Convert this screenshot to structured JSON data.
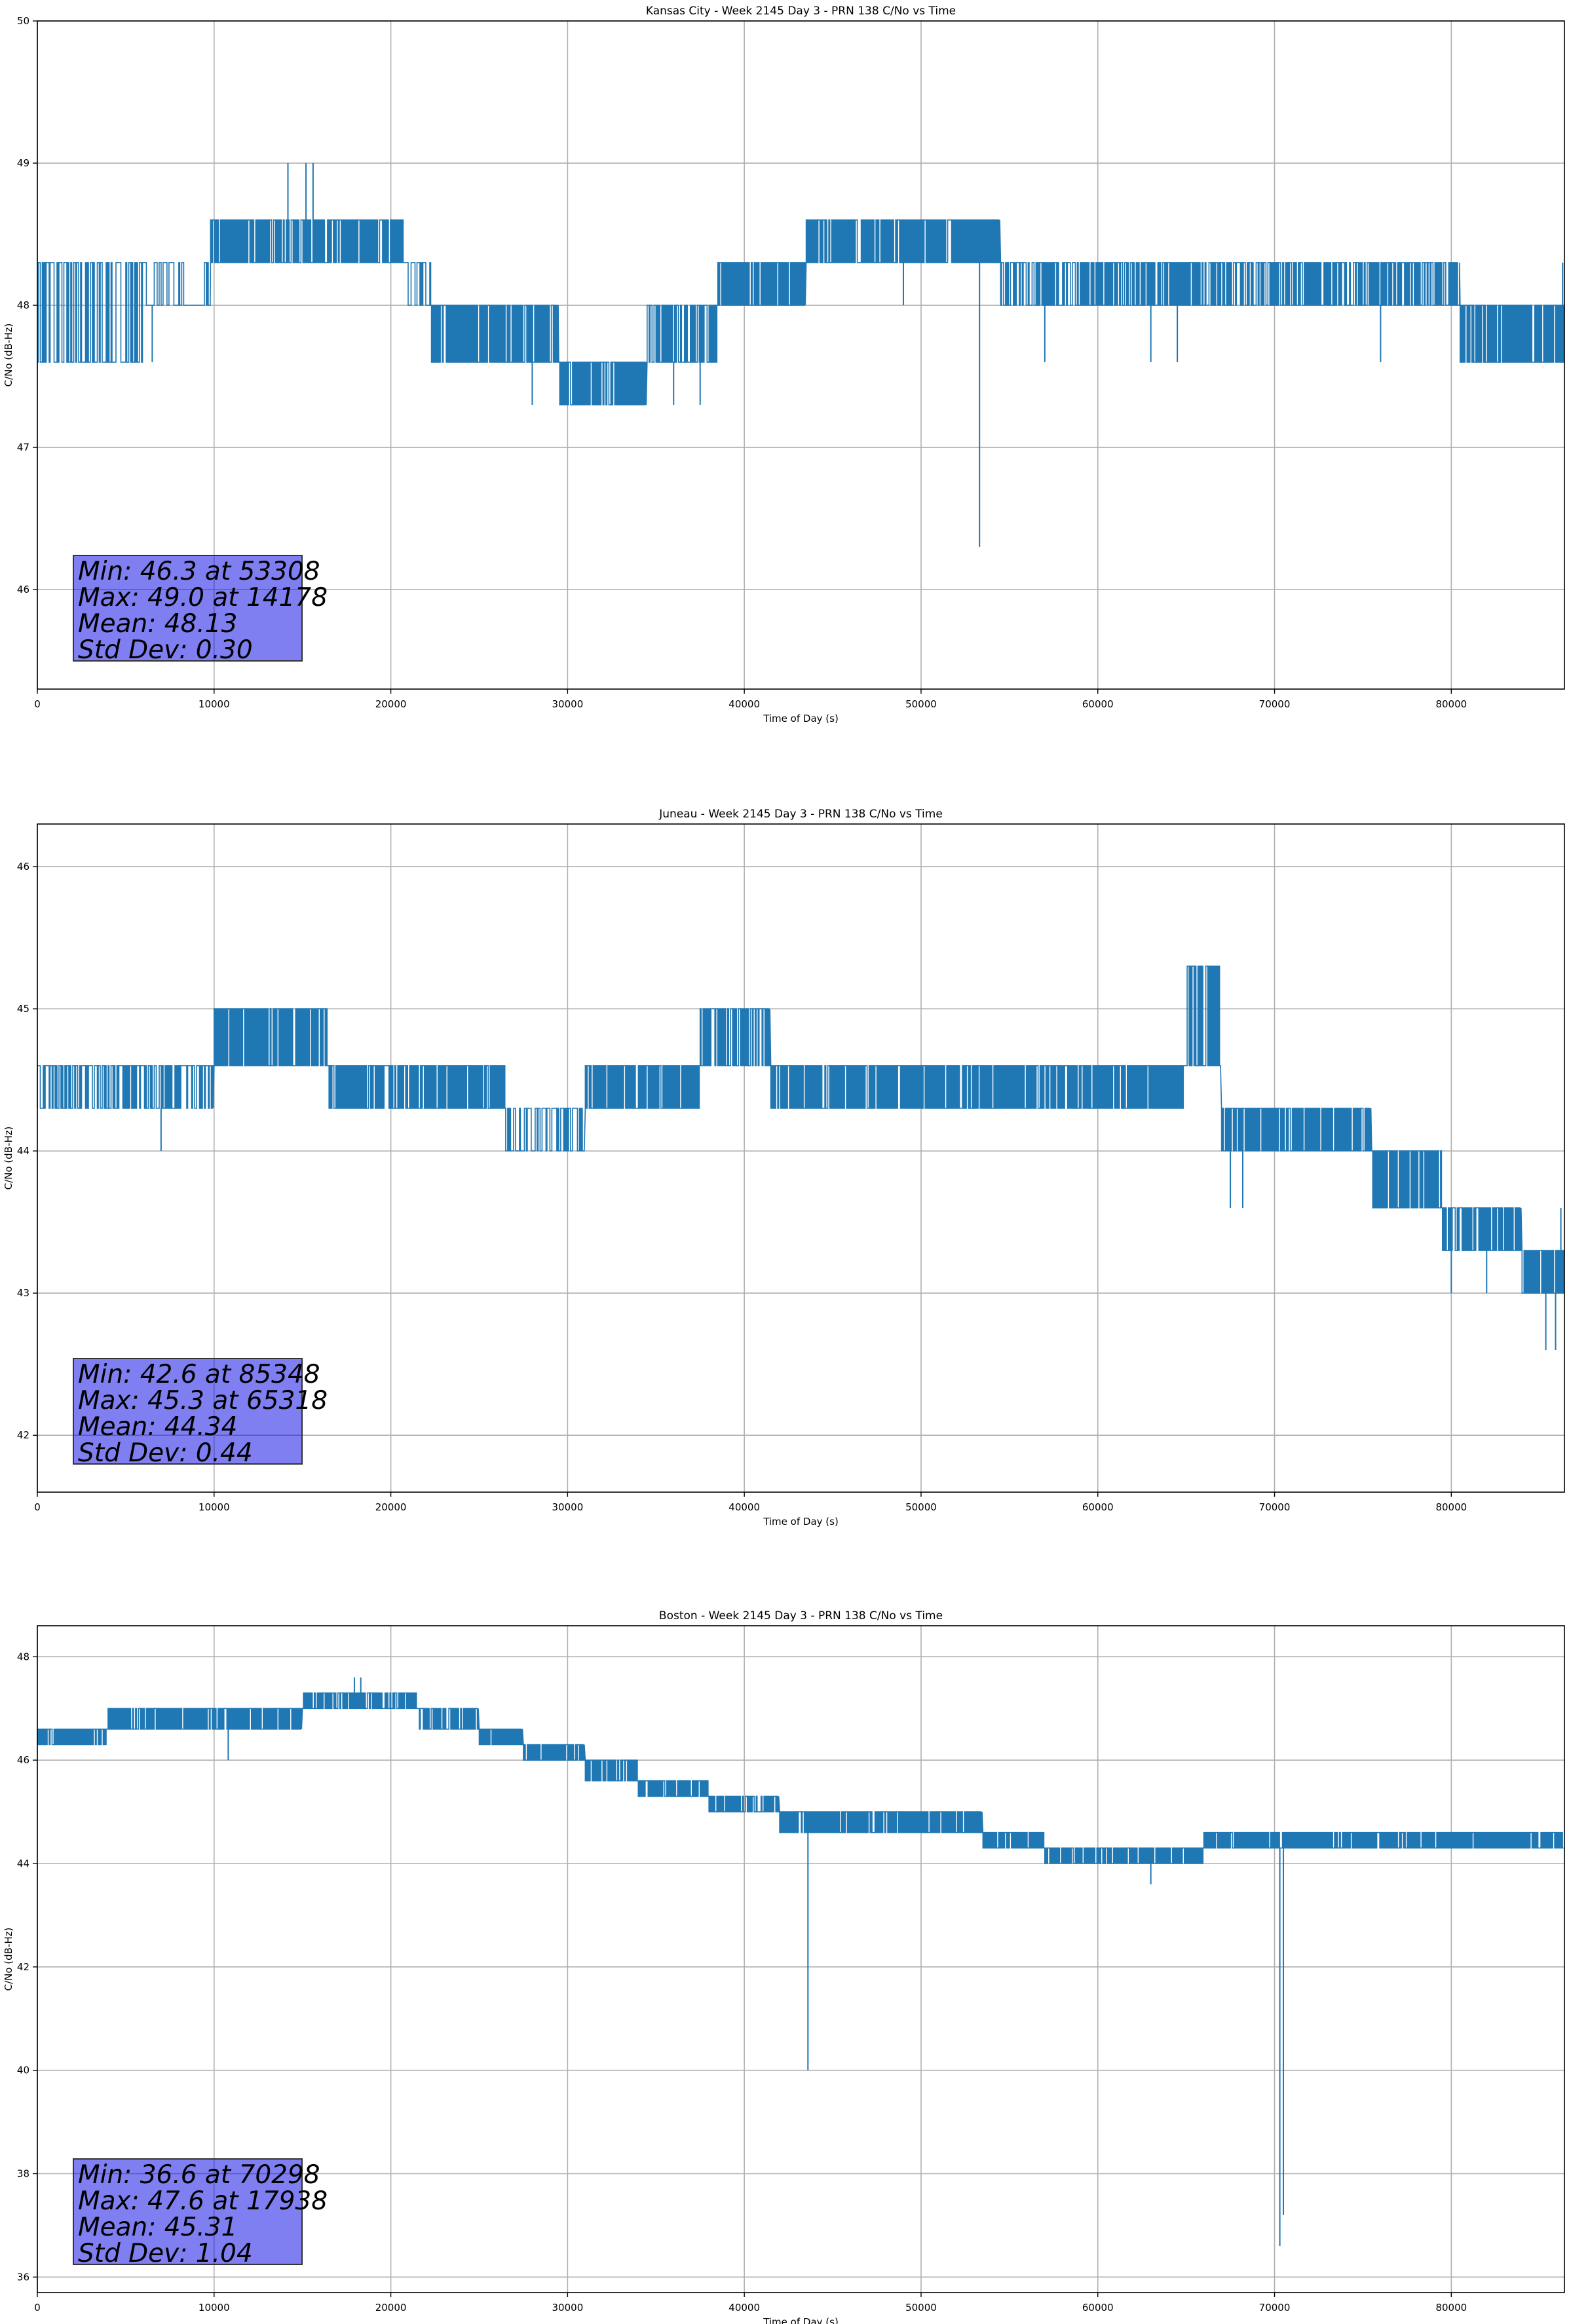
{
  "chart_data": [
    {
      "type": "line",
      "title": "Kansas City - Week 2145 Day 3 - PRN 138 C/No vs Time",
      "xlabel": "Time of Day (s)",
      "ylabel": "C/No (dB-Hz)",
      "xlim": [
        0,
        86400
      ],
      "ylim": [
        45.3,
        50.0
      ],
      "xticks": [
        0,
        10000,
        20000,
        30000,
        40000,
        50000,
        60000,
        70000,
        80000
      ],
      "yticks": [
        46,
        47,
        48,
        49,
        50
      ],
      "grid": true,
      "series_color": "#1f77b4",
      "stats": {
        "min": "Min: 46.3 at 53308",
        "max": "Max: 49.0 at 14178",
        "mean": "Mean: 48.13",
        "std": "Std Dev: 0.30"
      },
      "segments": [
        {
          "x": [
            0,
            6000
          ],
          "lo": 47.6,
          "hi": 48.3,
          "rate": 0.55
        },
        {
          "x": [
            6000,
            9800
          ],
          "lo": 48.0,
          "hi": 48.3,
          "rate": 0.3
        },
        {
          "x": [
            9800,
            20700
          ],
          "lo": 48.3,
          "hi": 48.6,
          "rate": 0.9
        },
        {
          "x": [
            20700,
            22300
          ],
          "lo": 48.0,
          "hi": 48.3,
          "rate": 0.35
        },
        {
          "x": [
            22300,
            29500
          ],
          "lo": 47.6,
          "hi": 48.0,
          "rate": 0.9
        },
        {
          "x": [
            29500,
            34500
          ],
          "lo": 47.3,
          "hi": 47.6,
          "rate": 0.9
        },
        {
          "x": [
            34500,
            38500
          ],
          "lo": 47.6,
          "hi": 48.0,
          "rate": 0.8
        },
        {
          "x": [
            38500,
            43500
          ],
          "lo": 48.0,
          "hi": 48.3,
          "rate": 0.9
        },
        {
          "x": [
            43500,
            54500
          ],
          "lo": 48.3,
          "hi": 48.6,
          "rate": 0.9
        },
        {
          "x": [
            54500,
            80500
          ],
          "lo": 48.0,
          "hi": 48.3,
          "rate": 0.7
        },
        {
          "x": [
            80500,
            86400
          ],
          "lo": 47.6,
          "hi": 48.0,
          "rate": 0.9
        }
      ],
      "spikes": [
        {
          "x": 14178,
          "from": 48.3,
          "to": 49.0
        },
        {
          "x": 15200,
          "from": 48.3,
          "to": 49.0
        },
        {
          "x": 15600,
          "from": 48.3,
          "to": 49.0
        },
        {
          "x": 6500,
          "from": 48.0,
          "to": 47.6
        },
        {
          "x": 28000,
          "from": 47.6,
          "to": 47.3
        },
        {
          "x": 36000,
          "from": 47.6,
          "to": 47.3
        },
        {
          "x": 37500,
          "from": 47.6,
          "to": 47.3
        },
        {
          "x": 53308,
          "from": 48.3,
          "to": 46.3
        },
        {
          "x": 49000,
          "from": 48.3,
          "to": 48.0
        },
        {
          "x": 57000,
          "from": 48.0,
          "to": 47.6
        },
        {
          "x": 63000,
          "from": 48.0,
          "to": 47.6
        },
        {
          "x": 64500,
          "from": 48.0,
          "to": 47.6
        },
        {
          "x": 76000,
          "from": 48.0,
          "to": 47.6
        },
        {
          "x": 86300,
          "from": 48.0,
          "to": 48.3
        }
      ]
    },
    {
      "type": "line",
      "title": "Juneau - Week 2145 Day 3 - PRN 138 C/No vs Time",
      "xlabel": "Time of Day (s)",
      "ylabel": "C/No (dB-Hz)",
      "xlim": [
        0,
        86400
      ],
      "ylim": [
        41.6,
        46.3
      ],
      "xticks": [
        0,
        10000,
        20000,
        30000,
        40000,
        50000,
        60000,
        70000,
        80000
      ],
      "yticks": [
        42,
        43,
        44,
        45,
        46
      ],
      "grid": true,
      "series_color": "#1f77b4",
      "stats": {
        "min": "Min: 42.6 at 85348",
        "max": "Max: 45.3 at 65318",
        "mean": "Mean: 44.34",
        "std": "Std Dev: 0.44"
      },
      "segments": [
        {
          "x": [
            0,
            10000
          ],
          "lo": 44.3,
          "hi": 44.6,
          "rate": 0.6
        },
        {
          "x": [
            10000,
            16500
          ],
          "lo": 44.6,
          "hi": 45.0,
          "rate": 0.9
        },
        {
          "x": [
            16500,
            26500
          ],
          "lo": 44.3,
          "hi": 44.6,
          "rate": 0.9
        },
        {
          "x": [
            26500,
            31000
          ],
          "lo": 44.0,
          "hi": 44.3,
          "rate": 0.5
        },
        {
          "x": [
            31000,
            37500
          ],
          "lo": 44.3,
          "hi": 44.6,
          "rate": 0.9
        },
        {
          "x": [
            37500,
            41500
          ],
          "lo": 44.6,
          "hi": 45.0,
          "rate": 0.8
        },
        {
          "x": [
            41500,
            58500
          ],
          "lo": 44.3,
          "hi": 44.6,
          "rate": 0.9
        },
        {
          "x": [
            58500,
            65000
          ],
          "lo": 44.3,
          "hi": 44.6,
          "rate": 0.9
        },
        {
          "x": [
            65000,
            67000
          ],
          "lo": 44.6,
          "hi": 45.3,
          "rate": 0.8
        },
        {
          "x": [
            67000,
            75500
          ],
          "lo": 44.0,
          "hi": 44.3,
          "rate": 0.9
        },
        {
          "x": [
            75500,
            79500
          ],
          "lo": 43.6,
          "hi": 44.0,
          "rate": 0.9
        },
        {
          "x": [
            79500,
            84000
          ],
          "lo": 43.3,
          "hi": 43.6,
          "rate": 0.9
        },
        {
          "x": [
            84000,
            86400
          ],
          "lo": 43.0,
          "hi": 43.3,
          "rate": 0.9
        }
      ],
      "spikes": [
        {
          "x": 7000,
          "from": 44.3,
          "to": 44.0
        },
        {
          "x": 67500,
          "from": 44.0,
          "to": 43.6
        },
        {
          "x": 68200,
          "from": 44.0,
          "to": 43.6
        },
        {
          "x": 85348,
          "from": 43.0,
          "to": 42.6
        },
        {
          "x": 85900,
          "from": 43.0,
          "to": 42.6
        },
        {
          "x": 80000,
          "from": 43.3,
          "to": 43.0
        },
        {
          "x": 82000,
          "from": 43.3,
          "to": 43.0
        },
        {
          "x": 86200,
          "from": 43.3,
          "to": 43.6
        }
      ]
    },
    {
      "type": "line",
      "title": "Boston - Week 2145 Day 3 - PRN 138 C/No vs Time",
      "xlabel": "Time of Day (s)",
      "ylabel": "C/No (dB-Hz)",
      "xlim": [
        0,
        86400
      ],
      "ylim": [
        35.7,
        48.6
      ],
      "xticks": [
        0,
        10000,
        20000,
        30000,
        40000,
        50000,
        60000,
        70000,
        80000
      ],
      "yticks": [
        36,
        38,
        40,
        42,
        44,
        46,
        48
      ],
      "grid": true,
      "series_color": "#1f77b4",
      "stats": {
        "min": "Min: 36.6 at 70298",
        "max": "Max: 47.6 at 17938",
        "mean": "Mean: 45.31",
        "std": "Std Dev: 1.04"
      },
      "segments": [
        {
          "x": [
            0,
            4000
          ],
          "lo": 46.3,
          "hi": 46.6,
          "rate": 0.9
        },
        {
          "x": [
            4000,
            10000
          ],
          "lo": 46.6,
          "hi": 47.0,
          "rate": 0.9
        },
        {
          "x": [
            10000,
            15000
          ],
          "lo": 46.6,
          "hi": 47.0,
          "rate": 0.9
        },
        {
          "x": [
            15000,
            21500
          ],
          "lo": 47.0,
          "hi": 47.3,
          "rate": 0.9
        },
        {
          "x": [
            21500,
            25000
          ],
          "lo": 46.6,
          "hi": 47.0,
          "rate": 0.8
        },
        {
          "x": [
            25000,
            27500
          ],
          "lo": 46.3,
          "hi": 46.6,
          "rate": 0.9
        },
        {
          "x": [
            27500,
            31000
          ],
          "lo": 46.0,
          "hi": 46.3,
          "rate": 0.9
        },
        {
          "x": [
            31000,
            34000
          ],
          "lo": 45.6,
          "hi": 46.0,
          "rate": 0.9
        },
        {
          "x": [
            34000,
            38000
          ],
          "lo": 45.3,
          "hi": 45.6,
          "rate": 0.9
        },
        {
          "x": [
            38000,
            42000
          ],
          "lo": 45.0,
          "hi": 45.3,
          "rate": 0.8
        },
        {
          "x": [
            42000,
            53500
          ],
          "lo": 44.6,
          "hi": 45.0,
          "rate": 0.9
        },
        {
          "x": [
            53500,
            57000
          ],
          "lo": 44.3,
          "hi": 44.6,
          "rate": 0.9
        },
        {
          "x": [
            57000,
            66000
          ],
          "lo": 44.0,
          "hi": 44.3,
          "rate": 0.9
        },
        {
          "x": [
            66000,
            86400
          ],
          "lo": 44.3,
          "hi": 44.6,
          "rate": 0.9
        }
      ],
      "spikes": [
        {
          "x": 10800,
          "from": 46.6,
          "to": 46.0
        },
        {
          "x": 17938,
          "from": 47.3,
          "to": 47.6
        },
        {
          "x": 18300,
          "from": 47.3,
          "to": 47.6
        },
        {
          "x": 43600,
          "from": 44.6,
          "to": 40.0
        },
        {
          "x": 63000,
          "from": 44.0,
          "to": 43.6
        },
        {
          "x": 70298,
          "from": 44.3,
          "to": 36.6
        },
        {
          "x": 70500,
          "from": 44.3,
          "to": 37.2
        }
      ]
    }
  ]
}
